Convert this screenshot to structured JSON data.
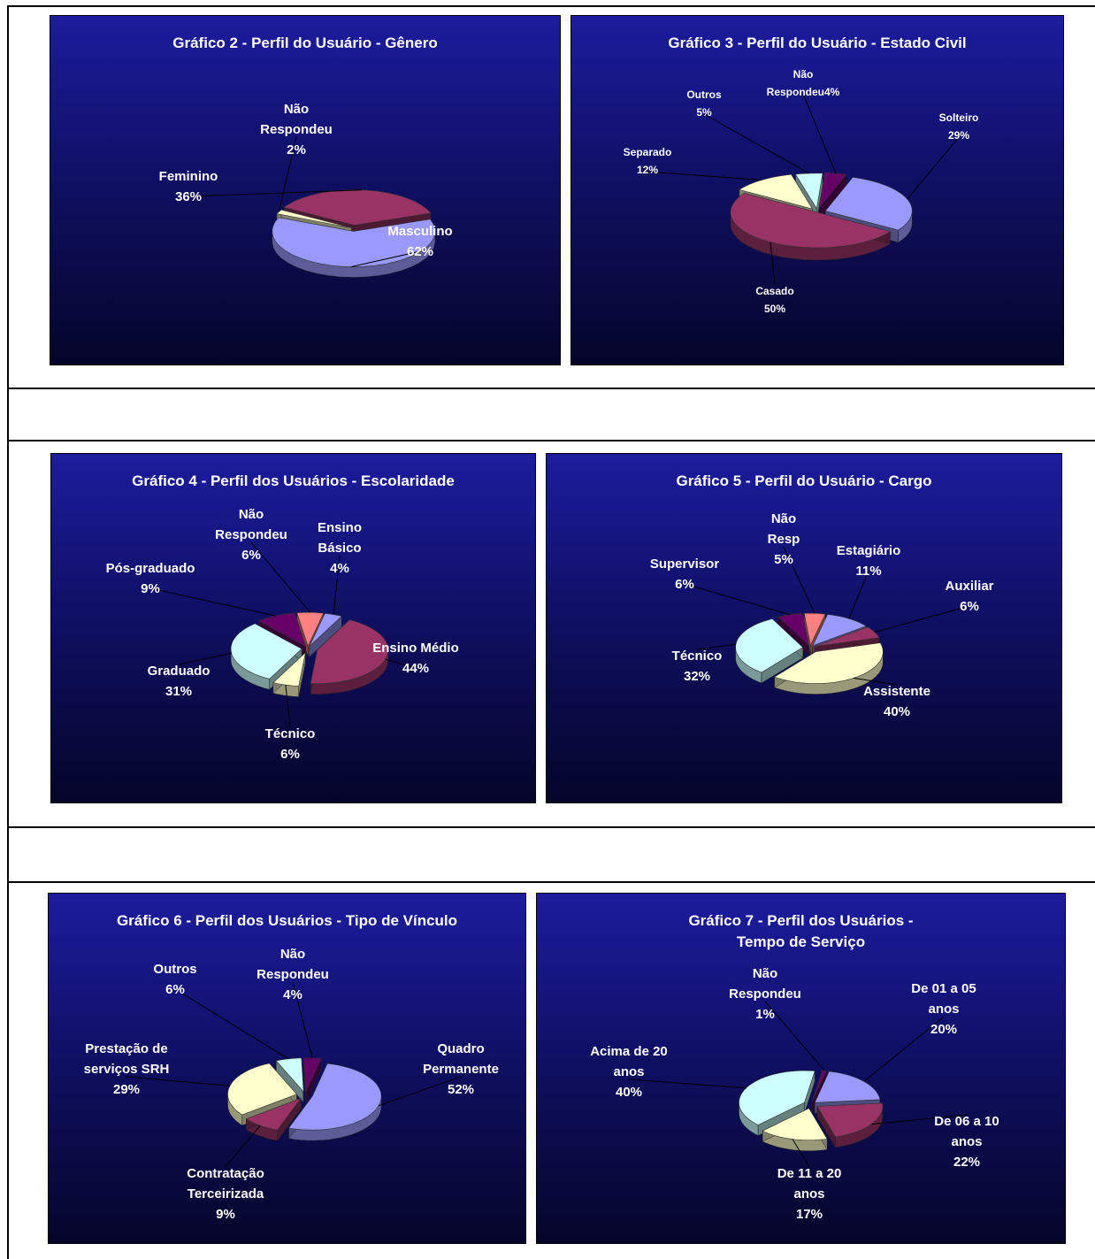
{
  "page": {
    "background": "#ffffff",
    "chart_background": "#101066"
  },
  "chart_data": [
    {
      "type": "pie",
      "title": "Gráfico 2 - Perfil do Usuário - Gênero",
      "slices": [
        {
          "label": [
            "Masculino",
            "62%"
          ],
          "value": 62,
          "color": "#9999ff"
        },
        {
          "label": [
            "Não",
            "Respondeu",
            "2%"
          ],
          "value": 2,
          "color": "#ffffcc"
        },
        {
          "label": [
            "Feminino",
            "36%"
          ],
          "value": 36,
          "color": "#993366"
        }
      ]
    },
    {
      "type": "pie",
      "title": "Gráfico 3 - Perfil do Usuário - Estado Civil",
      "slices": [
        {
          "label": [
            "Solteiro",
            "29%"
          ],
          "value": 29,
          "color": "#9999ff"
        },
        {
          "label": [
            "Casado",
            "50%"
          ],
          "value": 50,
          "color": "#993366"
        },
        {
          "label": [
            "Separado",
            "12%"
          ],
          "value": 12,
          "color": "#ffffcc"
        },
        {
          "label": [
            "Outros",
            "5%"
          ],
          "value": 5,
          "color": "#ccffff"
        },
        {
          "label": [
            "Não",
            "Respondeu4%"
          ],
          "value": 4,
          "color": "#660066"
        }
      ]
    },
    {
      "type": "pie",
      "title": "Gráfico 4 - Perfil dos Usuários - Escolaridade",
      "slices": [
        {
          "label": [
            "Ensino",
            "Básico",
            "4%"
          ],
          "value": 4,
          "color": "#9999ff"
        },
        {
          "label": [
            "Ensino Médio",
            "44%"
          ],
          "value": 44,
          "color": "#993366"
        },
        {
          "label": [
            "Técnico",
            "6%"
          ],
          "value": 6,
          "color": "#ffffcc"
        },
        {
          "label": [
            "Graduado",
            "31%"
          ],
          "value": 31,
          "color": "#ccffff"
        },
        {
          "label": [
            "Pós-graduado",
            "9%"
          ],
          "value": 9,
          "color": "#660066"
        },
        {
          "label": [
            "Não",
            "Respondeu",
            "6%"
          ],
          "value": 6,
          "color": "#ff8080"
        }
      ]
    },
    {
      "type": "pie",
      "title": "Gráfico 5 - Perfil do Usuário - Cargo",
      "slices": [
        {
          "label": [
            "Estagiário",
            "11%"
          ],
          "value": 11,
          "color": "#9999ff"
        },
        {
          "label": [
            "Auxiliar",
            "6%"
          ],
          "value": 6,
          "color": "#993366"
        },
        {
          "label": [
            "Assistente",
            "40%"
          ],
          "value": 40,
          "color": "#ffffcc"
        },
        {
          "label": [
            "Técnico",
            "32%"
          ],
          "value": 32,
          "color": "#ccffff"
        },
        {
          "label": [
            "Supervisor",
            "6%"
          ],
          "value": 6,
          "color": "#660066"
        },
        {
          "label": [
            "Não",
            "Resp",
            "5%"
          ],
          "value": 5,
          "color": "#ff8080"
        }
      ]
    },
    {
      "type": "pie",
      "title": "Gráfico 6 - Perfil dos Usuários - Tipo de Vínculo",
      "slices": [
        {
          "label": [
            "Quadro",
            "Permanente",
            "52%"
          ],
          "value": 52,
          "color": "#9999ff"
        },
        {
          "label": [
            "Contratação",
            "Terceirizada",
            "9%"
          ],
          "value": 9,
          "color": "#993366"
        },
        {
          "label": [
            "Prestação de",
            "serviços SRH",
            "29%"
          ],
          "value": 29,
          "color": "#ffffcc"
        },
        {
          "label": [
            "Outros",
            "6%"
          ],
          "value": 6,
          "color": "#ccffff"
        },
        {
          "label": [
            "Não",
            "Respondeu",
            "4%"
          ],
          "value": 4,
          "color": "#660066"
        }
      ]
    },
    {
      "type": "pie",
      "title": "Gráfico 7 - Perfil dos Usuários - Tempo de Serviço",
      "title_lines": [
        "Gráfico 7 - Perfil dos Usuários -",
        "Tempo de Serviço"
      ],
      "slices": [
        {
          "label": [
            "De 01 a 05",
            "anos",
            "20%"
          ],
          "value": 20,
          "color": "#9999ff"
        },
        {
          "label": [
            "De 06 a 10",
            "anos",
            "22%"
          ],
          "value": 22,
          "color": "#993366"
        },
        {
          "label": [
            "De 11 a 20",
            "anos",
            "17%"
          ],
          "value": 17,
          "color": "#ffffcc"
        },
        {
          "label": [
            "Acima de 20",
            "anos",
            "40%"
          ],
          "value": 40,
          "color": "#ccffff"
        },
        {
          "label": [
            "Não",
            "Respondeu",
            "1%"
          ],
          "value": 1,
          "color": "#660066"
        }
      ]
    }
  ]
}
